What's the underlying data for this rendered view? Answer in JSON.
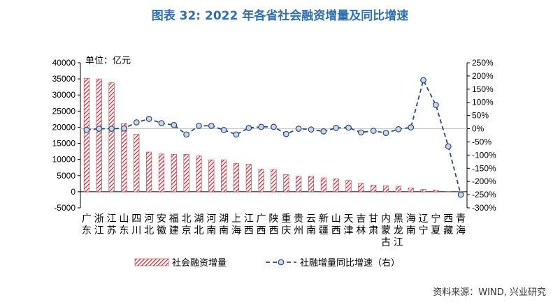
{
  "title": "图表 32: 2022 年各省社会融资增量及同比增速",
  "unit_label": "单位：亿元",
  "source": "资料来源：WIND, 兴业研究",
  "colors": {
    "bar": "#c8323c",
    "line": "#2b4a7a",
    "marker_fill": "#c9d7ea",
    "title": "#2f6fb0"
  },
  "chart_data": {
    "type": "bar",
    "categories": [
      "广东",
      "浙江",
      "江苏",
      "山东",
      "四川",
      "河北",
      "安徽",
      "福建",
      "北京",
      "湖北",
      "河南",
      "湖南",
      "上海",
      "江西",
      "广西",
      "陕西",
      "重庆",
      "贵州",
      "云南",
      "新疆",
      "山西",
      "天津",
      "吉林",
      "甘肃",
      "内蒙古",
      "黑龙江",
      "海南",
      "辽宁",
      "宁夏",
      "西藏",
      "青海"
    ],
    "series": [
      {
        "name": "社会融资增量",
        "axis": "left",
        "type": "bar",
        "values": [
          35200,
          35000,
          33800,
          21200,
          17800,
          12300,
          11700,
          11600,
          11600,
          11100,
          9900,
          9900,
          8800,
          8500,
          7000,
          6900,
          5300,
          4800,
          4800,
          4300,
          4000,
          3500,
          2600,
          2000,
          1800,
          1700,
          1100,
          700,
          500,
          0,
          -200
        ]
      },
      {
        "name": "社融增量同比增速（右）",
        "axis": "right",
        "type": "line",
        "values": [
          -4,
          0,
          0,
          1,
          24,
          37,
          21,
          14,
          -22,
          11,
          11,
          -5,
          -22,
          3,
          7,
          7,
          -20,
          0,
          -3,
          -10,
          3,
          4,
          -14,
          -8,
          -16,
          -2,
          5,
          184,
          90,
          -67,
          -250
        ]
      }
    ],
    "y_left": {
      "min": -5000,
      "max": 40000,
      "step": 5000,
      "ticks": [
        "-5000",
        "0",
        "5000",
        "10000",
        "15000",
        "20000",
        "25000",
        "30000",
        "35000",
        "40000"
      ]
    },
    "y_right": {
      "min": -300,
      "max": 250,
      "step": 50,
      "ticks": [
        "-300%",
        "-250%",
        "-200%",
        "-150%",
        "-100%",
        "-50%",
        "0%",
        "50%",
        "100%",
        "150%",
        "200%",
        "250%"
      ]
    },
    "legend_position": "bottom",
    "grid": false
  }
}
